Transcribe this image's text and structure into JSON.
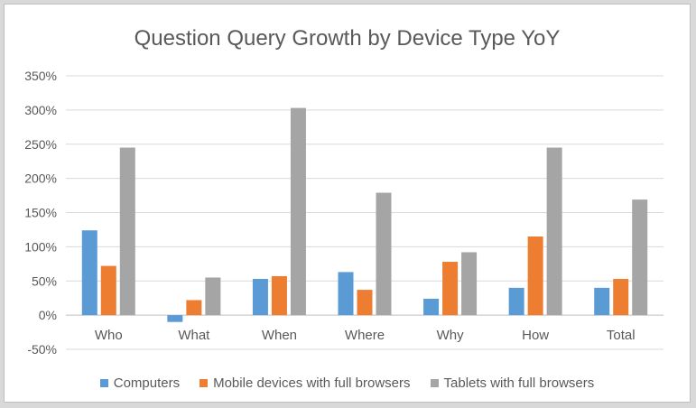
{
  "chart_data": {
    "type": "bar",
    "title": "Question Query Growth by Device Type YoY",
    "categories": [
      "Who",
      "What",
      "When",
      "Where",
      "Why",
      "How",
      "Total"
    ],
    "series": [
      {
        "name": "Computers",
        "color": "#5b9bd5",
        "values": [
          124,
          -10,
          53,
          63,
          24,
          40,
          40
        ]
      },
      {
        "name": "Mobile devices with full browsers",
        "color": "#ed7d31",
        "values": [
          72,
          22,
          57,
          37,
          78,
          115,
          53
        ]
      },
      {
        "name": "Tablets with full browsers",
        "color": "#a5a5a5",
        "values": [
          245,
          55,
          303,
          179,
          92,
          245,
          169
        ]
      }
    ],
    "yticks": [
      "350%",
      "300%",
      "250%",
      "200%",
      "150%",
      "100%",
      "50%",
      "0%",
      "-50%"
    ],
    "ylim": [
      -50,
      350
    ],
    "grid": true,
    "legend_position": "bottom"
  }
}
